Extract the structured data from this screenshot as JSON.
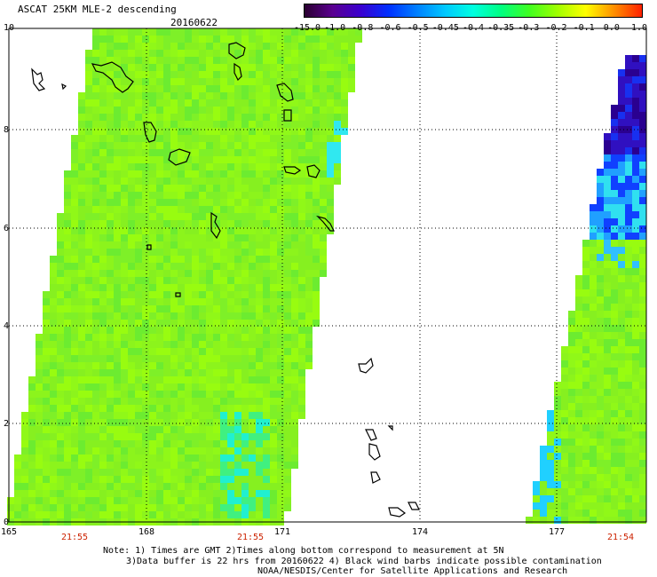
{
  "header": {
    "title": "ASCAT 25KM MLE-2 descending",
    "date": "20160622"
  },
  "colorbar": {
    "labels": [
      "-15.0",
      "-1.0",
      "-0.8",
      "-0.6",
      "-0.5",
      "-0.45",
      "-0.4",
      "-0.35",
      "-0.3",
      "-0.2",
      "-0.1",
      "0.0",
      "1.0"
    ],
    "colors": [
      "#2a0030",
      "#5a0090",
      "#3a00d0",
      "#0030ff",
      "#0080ff",
      "#00c8ff",
      "#00ffe0",
      "#00ff80",
      "#40ff20",
      "#a0ff00",
      "#ffff00",
      "#ff9000",
      "#ff2000"
    ]
  },
  "axes": {
    "x_ticks": [
      "165",
      "168",
      "171",
      "174",
      "177"
    ],
    "y_ticks": [
      "0",
      "2",
      "4",
      "6",
      "8",
      "10"
    ]
  },
  "times": [
    "21:55",
    "21:55",
    "21:54"
  ],
  "notes": [
    "Note: 1) Times are GMT 2)Times along bottom correspond to measurement at 5N",
    "3)Data buffer is 22 hrs from 20160622 4) Black wind barbs indicate possible contamination",
    "NOAA/NESDIS/Center for Satellite Applications and Research"
  ]
}
